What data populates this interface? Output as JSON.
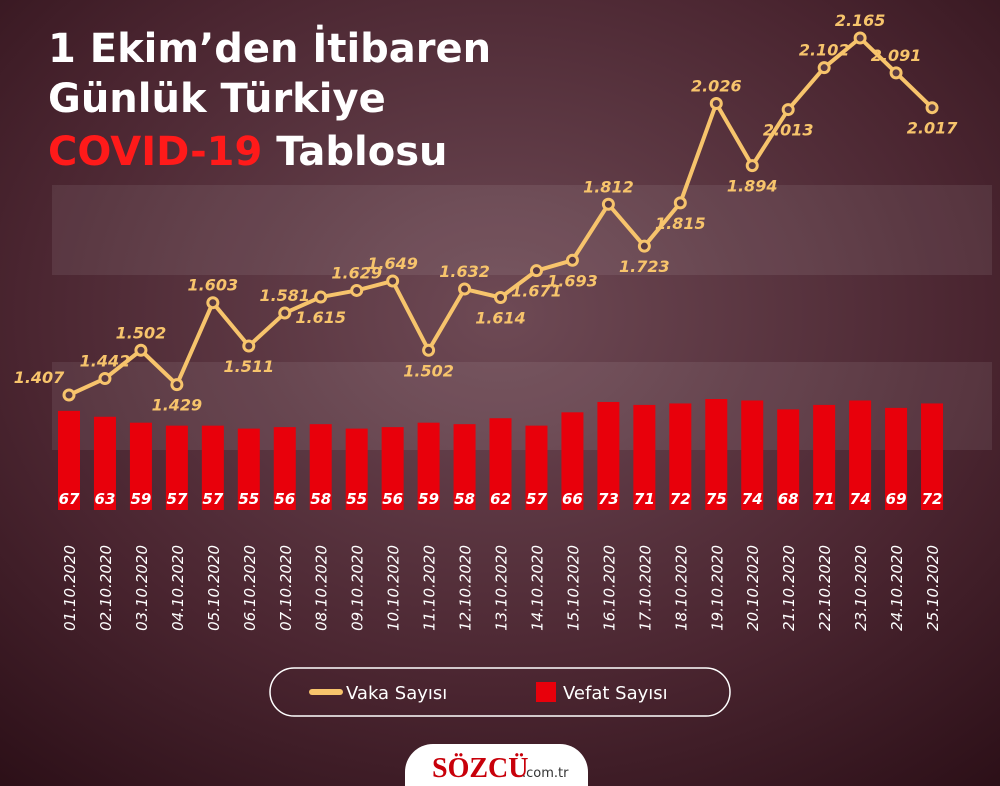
{
  "chart_data": {
    "type": "combo",
    "title": [
      "1 Ekim’den İtibaren",
      "Günlük Türkiye",
      "COVID-19",
      "Tablosu"
    ],
    "categories": [
      "01.10.2020",
      "02.10.2020",
      "03.10.2020",
      "04.10.2020",
      "05.10.2020",
      "06.10.2020",
      "07.10.2020",
      "08.10.2020",
      "09.10.2020",
      "10.10.2020",
      "11.10.2020",
      "12.10.2020",
      "13.10.2020",
      "14.10.2020",
      "15.10.2020",
      "16.10.2020",
      "17.10.2020",
      "18.10.2020",
      "19.10.2020",
      "20.10.2020",
      "21.10.2020",
      "22.10.2020",
      "23.10.2020",
      "24.10.2020",
      "25.10.2020"
    ],
    "series": [
      {
        "name": "Vaka Sayısı",
        "type": "line",
        "color": "#f7c46c",
        "values": [
          1407,
          1442,
          1502,
          1429,
          1603,
          1511,
          1581,
          1615,
          1629,
          1649,
          1502,
          1632,
          1614,
          1671,
          1693,
          1812,
          1723,
          1815,
          2026,
          1894,
          2013,
          2102,
          2165,
          2091,
          2017
        ],
        "value_labels": [
          "1.407",
          "1.442",
          "1.502",
          "1.429",
          "1.603",
          "1.511",
          "1.581",
          "1.615",
          "1.629",
          "1.649",
          "1.502",
          "1.632",
          "1.614",
          "1.671",
          "1.693",
          "1.812",
          "1.723",
          "1.815",
          "2.026",
          "1.894",
          "2.013",
          "2.102",
          "2.165",
          "2.091",
          "2.017"
        ]
      },
      {
        "name": "Vefat Sayısı",
        "type": "bar",
        "color": "#e8000b",
        "values": [
          67,
          63,
          59,
          57,
          57,
          55,
          56,
          58,
          55,
          56,
          59,
          58,
          62,
          57,
          66,
          73,
          71,
          72,
          75,
          74,
          68,
          71,
          74,
          69,
          72
        ]
      }
    ]
  },
  "logo": {
    "name": "SÖZCÜ",
    "domain": ".com.tr"
  }
}
